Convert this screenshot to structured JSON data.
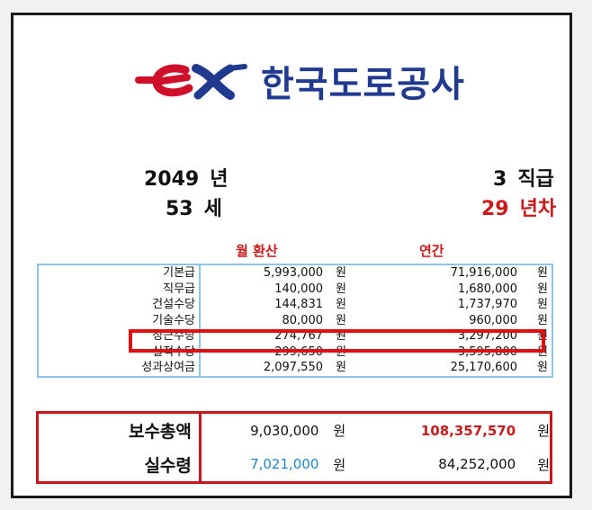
{
  "header": {
    "org_name": "한국도로공사",
    "logo_text": "ex"
  },
  "info": {
    "year": "2049",
    "year_unit": "년",
    "age": "53",
    "age_unit": "세",
    "grade": "3",
    "grade_unit": "직급",
    "service": "29",
    "service_unit": "년차"
  },
  "columns": {
    "monthly": "월 환산",
    "annual": "연간"
  },
  "currency_unit": "원",
  "items": [
    {
      "name": "기본급",
      "monthly": "5,993,000",
      "annual": "71,916,000"
    },
    {
      "name": "직무급",
      "monthly": "140,000",
      "annual": "1,680,000"
    },
    {
      "name": "건설수당",
      "monthly": "144,831",
      "annual": "1,737,970"
    },
    {
      "name": "기술수당",
      "monthly": "80,000",
      "annual": "960,000"
    },
    {
      "name": "정근수당",
      "monthly": "274,767",
      "annual": "3,297,200"
    },
    {
      "name": "실적수당",
      "monthly": "299,650",
      "annual": "3,595,800"
    },
    {
      "name": "성과상여금",
      "monthly": "2,097,550",
      "annual": "25,170,600"
    }
  ],
  "totals": {
    "gross_label": "보수총액",
    "gross_monthly": "9,030,000",
    "gross_annual": "108,357,570",
    "net_label": "실수령",
    "net_monthly": "7,021,000",
    "net_annual": "84,252,000"
  },
  "colors": {
    "red": "#cc1a1a",
    "blue": "#1f86c8",
    "logo_blue": "#1f3a8f",
    "logo_red": "#d0102a"
  }
}
